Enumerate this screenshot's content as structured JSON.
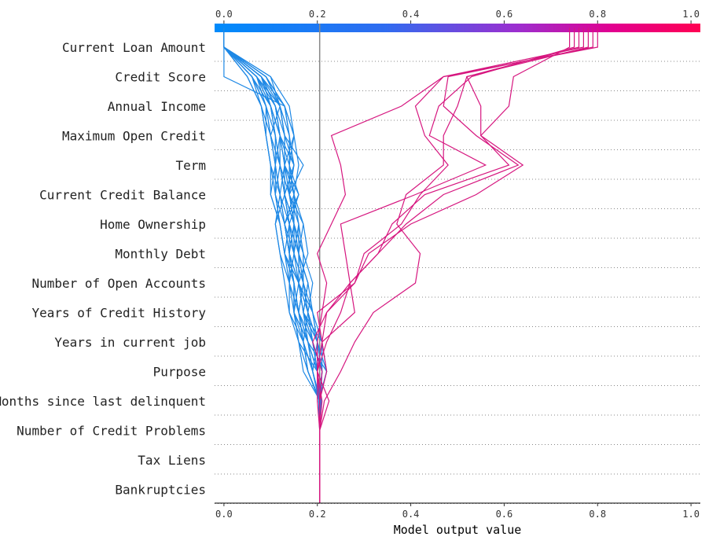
{
  "chart_data": {
    "type": "decision_plot",
    "xlabel": "Model output value",
    "xlim": [
      -0.02,
      1.02
    ],
    "x_ticks": [
      0.0,
      0.2,
      0.4,
      0.6,
      0.8,
      1.0
    ],
    "x_tick_labels": [
      "0.0",
      "0.2",
      "0.4",
      "0.6",
      "0.8",
      "1.0"
    ],
    "base_value": 0.205,
    "features": [
      "Current Loan Amount",
      "Credit Score",
      "Annual Income",
      "Maximum Open Credit",
      "Term",
      "Current Credit Balance",
      "Home Ownership",
      "Monthly Debt",
      "Number of Open Accounts",
      "Years of Credit History",
      "Years in current job",
      "Purpose",
      "Months since last delinquent",
      "Number of Credit Problems",
      "Tax Liens",
      "Bankruptcies"
    ],
    "colorbar": {
      "from": "#008bfb",
      "to": "#ff0052"
    },
    "series_low": [
      [
        0.205,
        0.205,
        0.205,
        0.204,
        0.19,
        0.17,
        0.15,
        0.16,
        0.14,
        0.15,
        0.13,
        0.15,
        0.14,
        0.13,
        0.0,
        0.0
      ],
      [
        0.205,
        0.205,
        0.205,
        0.206,
        0.21,
        0.19,
        0.17,
        0.18,
        0.16,
        0.17,
        0.15,
        0.16,
        0.15,
        0.14,
        0.1,
        0.0
      ],
      [
        0.205,
        0.205,
        0.205,
        0.208,
        0.2,
        0.2,
        0.18,
        0.19,
        0.17,
        0.16,
        0.14,
        0.17,
        0.13,
        0.12,
        0.09,
        0.0
      ],
      [
        0.205,
        0.205,
        0.205,
        0.203,
        0.22,
        0.18,
        0.16,
        0.17,
        0.15,
        0.14,
        0.16,
        0.13,
        0.15,
        0.13,
        0.08,
        0.0
      ],
      [
        0.205,
        0.205,
        0.205,
        0.207,
        0.19,
        0.2,
        0.19,
        0.16,
        0.18,
        0.17,
        0.14,
        0.15,
        0.12,
        0.11,
        0.08,
        0.0
      ],
      [
        0.205,
        0.205,
        0.205,
        0.204,
        0.22,
        0.21,
        0.17,
        0.18,
        0.16,
        0.15,
        0.13,
        0.15,
        0.13,
        0.12,
        0.09,
        0.0
      ],
      [
        0.205,
        0.205,
        0.205,
        0.205,
        0.2,
        0.19,
        0.16,
        0.17,
        0.15,
        0.13,
        0.15,
        0.14,
        0.14,
        0.12,
        0.1,
        0.0
      ],
      [
        0.205,
        0.205,
        0.205,
        0.206,
        0.18,
        0.17,
        0.18,
        0.16,
        0.13,
        0.14,
        0.13,
        0.12,
        0.12,
        0.11,
        0.08,
        0.0
      ],
      [
        0.205,
        0.205,
        0.205,
        0.203,
        0.21,
        0.2,
        0.19,
        0.17,
        0.17,
        0.15,
        0.14,
        0.14,
        0.15,
        0.13,
        0.09,
        0.0
      ],
      [
        0.205,
        0.205,
        0.205,
        0.207,
        0.2,
        0.18,
        0.15,
        0.15,
        0.14,
        0.13,
        0.16,
        0.14,
        0.12,
        0.1,
        0.08,
        0.0
      ],
      [
        0.205,
        0.205,
        0.205,
        0.205,
        0.21,
        0.19,
        0.17,
        0.16,
        0.16,
        0.14,
        0.12,
        0.13,
        0.13,
        0.11,
        0.07,
        0.0
      ],
      [
        0.205,
        0.205,
        0.205,
        0.204,
        0.19,
        0.18,
        0.16,
        0.14,
        0.15,
        0.16,
        0.14,
        0.12,
        0.11,
        0.09,
        0.06,
        0.0
      ],
      [
        0.205,
        0.205,
        0.205,
        0.206,
        0.18,
        0.17,
        0.14,
        0.13,
        0.12,
        0.11,
        0.13,
        0.13,
        0.12,
        0.1,
        0.08,
        0.0
      ],
      [
        0.205,
        0.205,
        0.205,
        0.208,
        0.2,
        0.16,
        0.15,
        0.15,
        0.13,
        0.12,
        0.11,
        0.1,
        0.09,
        0.09,
        0.06,
        0.0
      ],
      [
        0.205,
        0.205,
        0.205,
        0.203,
        0.2,
        0.18,
        0.17,
        0.16,
        0.14,
        0.13,
        0.12,
        0.11,
        0.1,
        0.12,
        0.07,
        0.0
      ],
      [
        0.205,
        0.205,
        0.205,
        0.205,
        0.19,
        0.17,
        0.16,
        0.15,
        0.13,
        0.12,
        0.1,
        0.11,
        0.1,
        0.08,
        0.06,
        0.0
      ],
      [
        0.205,
        0.205,
        0.205,
        0.207,
        0.21,
        0.2,
        0.18,
        0.17,
        0.17,
        0.15,
        0.15,
        0.14,
        0.14,
        0.13,
        0.09,
        0.0
      ],
      [
        0.205,
        0.205,
        0.205,
        0.204,
        0.2,
        0.19,
        0.18,
        0.17,
        0.16,
        0.14,
        0.13,
        0.12,
        0.11,
        0.1,
        0.07,
        0.0
      ],
      [
        0.205,
        0.205,
        0.205,
        0.206,
        0.17,
        0.16,
        0.14,
        0.14,
        0.12,
        0.11,
        0.12,
        0.1,
        0.09,
        0.08,
        0.05,
        0.0
      ],
      [
        0.205,
        0.205,
        0.205,
        0.204,
        0.21,
        0.21,
        0.19,
        0.18,
        0.16,
        0.16,
        0.15,
        0.13,
        0.13,
        0.12,
        0.08,
        0.0
      ],
      [
        0.205,
        0.205,
        0.205,
        0.205,
        0.19,
        0.18,
        0.15,
        0.15,
        0.13,
        0.12,
        0.11,
        0.12,
        0.1,
        0.09,
        0.06,
        0.0
      ],
      [
        0.205,
        0.205,
        0.205,
        0.207,
        0.2,
        0.18,
        0.16,
        0.14,
        0.14,
        0.13,
        0.11,
        0.11,
        0.11,
        0.1,
        0.07,
        0.0
      ],
      [
        0.205,
        0.205,
        0.205,
        0.203,
        0.22,
        0.2,
        0.17,
        0.16,
        0.15,
        0.15,
        0.14,
        0.13,
        0.12,
        0.11,
        0.08,
        0.0
      ],
      [
        0.205,
        0.205,
        0.205,
        0.206,
        0.19,
        0.17,
        0.16,
        0.15,
        0.14,
        0.13,
        0.12,
        0.11,
        0.12,
        0.1,
        0.06,
        0.0
      ],
      [
        0.205,
        0.205,
        0.205,
        0.205,
        0.2,
        0.19,
        0.18,
        0.16,
        0.14,
        0.14,
        0.13,
        0.12,
        0.1,
        0.09,
        0.07,
        0.0
      ],
      [
        0.205,
        0.205,
        0.205,
        0.204,
        0.18,
        0.16,
        0.15,
        0.14,
        0.13,
        0.12,
        0.1,
        0.1,
        0.09,
        0.08,
        0.05,
        0.0
      ]
    ],
    "series_high": [
      [
        0.205,
        0.205,
        0.205,
        0.225,
        0.2,
        0.2,
        0.21,
        0.22,
        0.2,
        0.23,
        0.26,
        0.25,
        0.23,
        0.38,
        0.47,
        0.8
      ],
      [
        0.205,
        0.205,
        0.205,
        0.215,
        0.25,
        0.28,
        0.32,
        0.41,
        0.42,
        0.37,
        0.39,
        0.47,
        0.47,
        0.5,
        0.52,
        0.76
      ],
      [
        0.205,
        0.205,
        0.205,
        0.2,
        0.2,
        0.21,
        0.28,
        0.27,
        0.26,
        0.25,
        0.41,
        0.56,
        0.44,
        0.46,
        0.53,
        0.75
      ],
      [
        0.205,
        0.205,
        0.205,
        0.205,
        0.21,
        0.19,
        0.22,
        0.28,
        0.3,
        0.38,
        0.42,
        0.48,
        0.43,
        0.41,
        0.47,
        0.77
      ],
      [
        0.205,
        0.205,
        0.205,
        0.21,
        0.2,
        0.21,
        0.22,
        0.27,
        0.33,
        0.36,
        0.43,
        0.61,
        0.55,
        0.55,
        0.52,
        0.78
      ],
      [
        0.205,
        0.205,
        0.205,
        0.205,
        0.2,
        0.22,
        0.25,
        0.27,
        0.33,
        0.39,
        0.47,
        0.63,
        0.54,
        0.47,
        0.48,
        0.79
      ],
      [
        0.205,
        0.205,
        0.205,
        0.205,
        0.22,
        0.21,
        0.2,
        0.28,
        0.31,
        0.4,
        0.54,
        0.64,
        0.55,
        0.61,
        0.62,
        0.74
      ]
    ]
  }
}
